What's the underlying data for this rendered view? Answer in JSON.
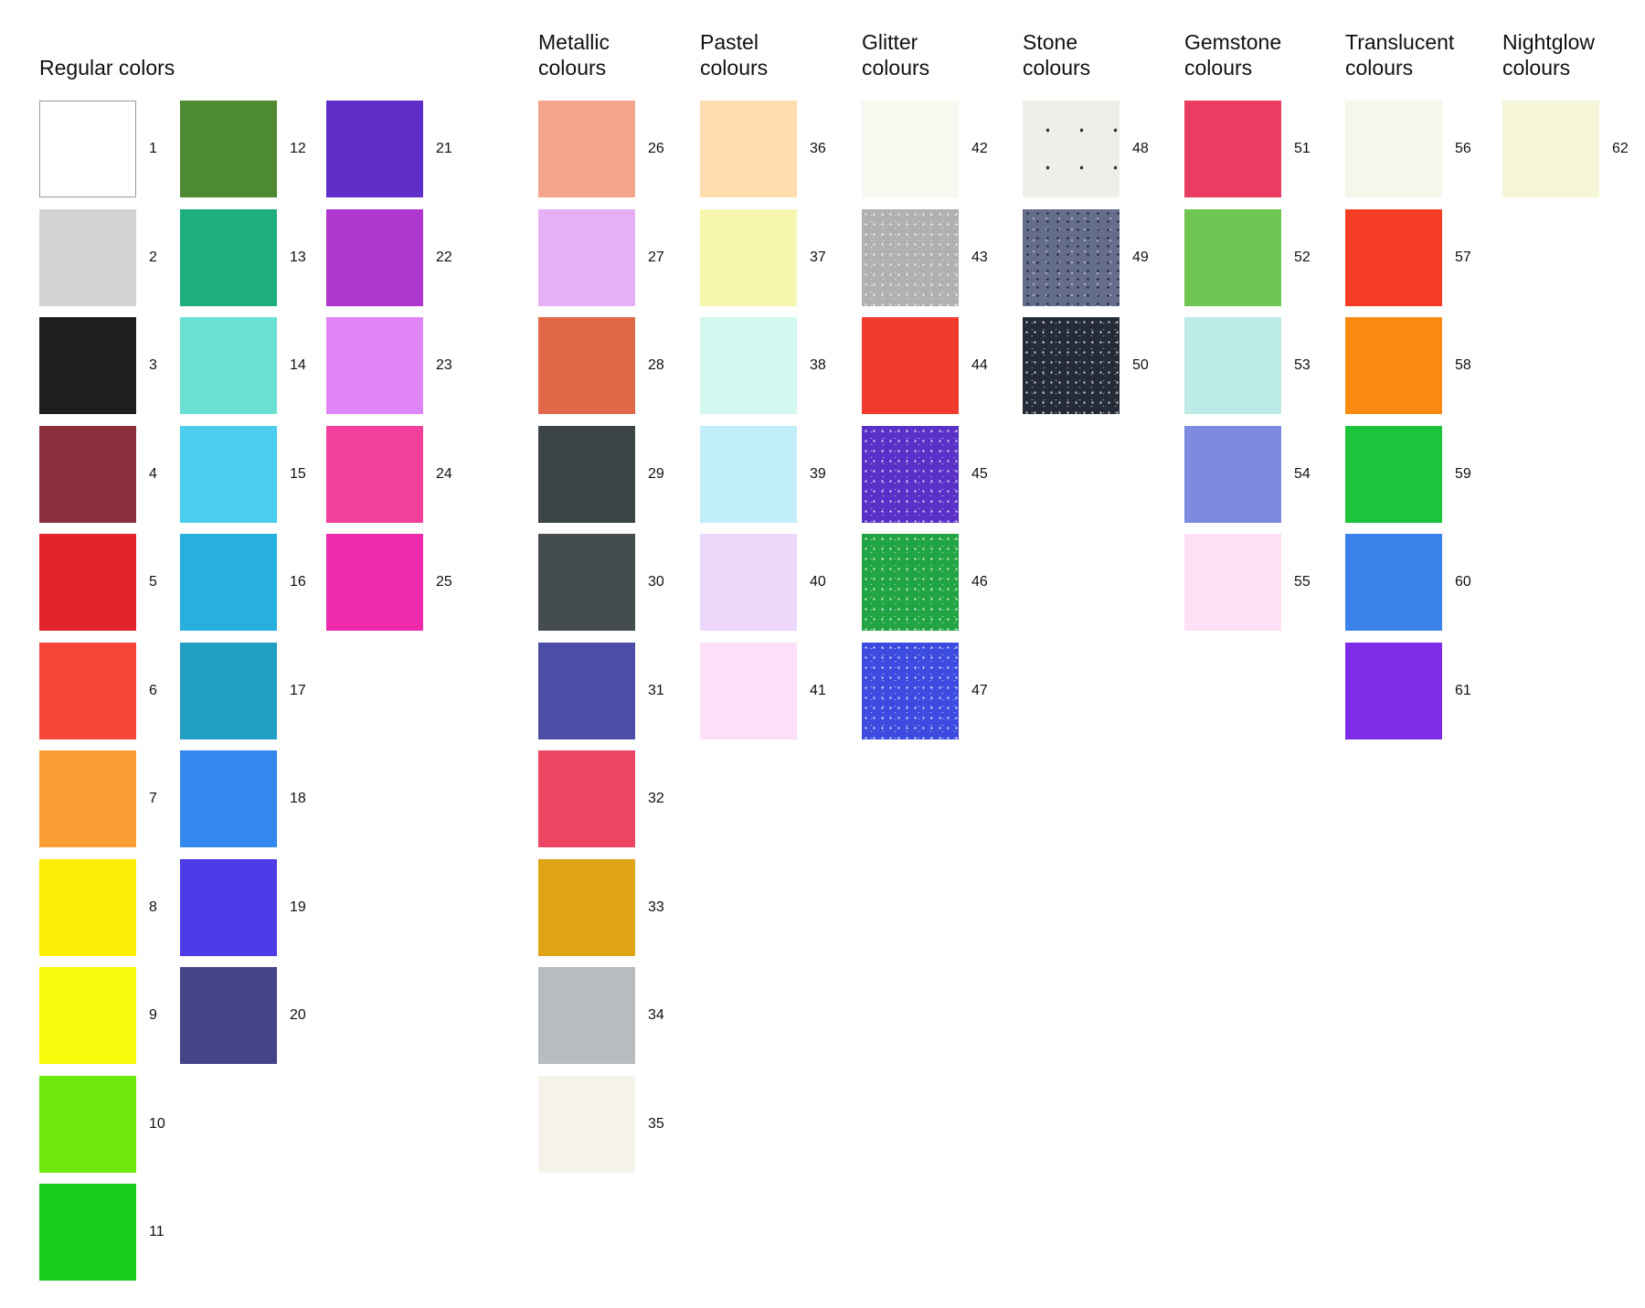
{
  "groups": [
    {
      "title": "Regular colors",
      "columns": [
        [
          {
            "num": "1",
            "color": "#ffffff",
            "border": true
          },
          {
            "num": "2",
            "color": "#d3d3d3"
          },
          {
            "num": "3",
            "color": "#1f1f21"
          },
          {
            "num": "4",
            "color": "#8c2f3c"
          },
          {
            "num": "5",
            "color": "#e2232c"
          },
          {
            "num": "6",
            "color": "#f4473a"
          },
          {
            "num": "7",
            "color": "#f99f34"
          },
          {
            "num": "8",
            "color": "#fdee05"
          },
          {
            "num": "9",
            "color": "#fafa0c"
          },
          {
            "num": "10",
            "color": "#6ee80a"
          },
          {
            "num": "11",
            "color": "#19cc1d"
          }
        ],
        [
          {
            "num": "12",
            "color": "#4e8a32"
          },
          {
            "num": "13",
            "color": "#1fae7f"
          },
          {
            "num": "14",
            "color": "#6ae0d3"
          },
          {
            "num": "15",
            "color": "#4ccdef"
          },
          {
            "num": "16",
            "color": "#27afde"
          },
          {
            "num": "17",
            "color": "#219fc5"
          },
          {
            "num": "18",
            "color": "#3588ee"
          },
          {
            "num": "19",
            "color": "#4e3be8"
          },
          {
            "num": "20",
            "color": "#444489"
          }
        ],
        [
          {
            "num": "21",
            "color": "#5f2ec9"
          },
          {
            "num": "22",
            "color": "#ae36cc"
          },
          {
            "num": "23",
            "color": "#e085f8"
          },
          {
            "num": "24",
            "color": "#f23f9c"
          },
          {
            "num": "25",
            "color": "#ed2aac"
          }
        ]
      ]
    },
    {
      "title": "Metallic\ncolours",
      "columns": [
        [
          {
            "num": "26",
            "color": "#f3a58e"
          },
          {
            "num": "27",
            "color": "#e6b0f7"
          },
          {
            "num": "28",
            "color": "#df6849"
          },
          {
            "num": "29",
            "color": "#3c4448"
          },
          {
            "num": "30",
            "color": "#444c4f"
          },
          {
            "num": "31",
            "color": "#4b4ea4"
          },
          {
            "num": "32",
            "color": "#ee4564"
          },
          {
            "num": "33",
            "color": "#e0a516"
          },
          {
            "num": "34",
            "color": "#b7bcc0"
          },
          {
            "num": "35",
            "color": "#f4f2e9"
          }
        ]
      ]
    },
    {
      "title": "Pastel\ncolours",
      "columns": [
        [
          {
            "num": "36",
            "color": "#fedcae"
          },
          {
            "num": "37",
            "color": "#f7f6ae"
          },
          {
            "num": "38",
            "color": "#d2f8ef"
          },
          {
            "num": "39",
            "color": "#c2eefa"
          },
          {
            "num": "40",
            "color": "#ecd6fa"
          },
          {
            "num": "41",
            "color": "#fde0f8"
          }
        ]
      ]
    },
    {
      "title": "Glitter\ncolours",
      "columns": [
        [
          {
            "num": "42",
            "color": "#f8f8f0"
          },
          {
            "num": "43",
            "color": "#b0b0b0",
            "texture": "glitter"
          },
          {
            "num": "44",
            "color": "#f03b2c"
          },
          {
            "num": "45",
            "color": "#5a31c8",
            "texture": "glitter"
          },
          {
            "num": "46",
            "color": "#21a443",
            "texture": "glitter"
          },
          {
            "num": "47",
            "color": "#3c4be0",
            "texture": "glitter"
          }
        ]
      ]
    },
    {
      "title": "Stone\ncolours",
      "columns": [
        [
          {
            "num": "48",
            "color": "#eeefe8",
            "texture": "sparse"
          },
          {
            "num": "49",
            "color": "#656d8c",
            "texture": "speckle"
          },
          {
            "num": "50",
            "color": "#252c38",
            "texture": "glitter"
          }
        ]
      ]
    },
    {
      "title": "Gemstone\ncolours",
      "columns": [
        [
          {
            "num": "51",
            "color": "#ea3d62"
          },
          {
            "num": "52",
            "color": "#70c652"
          },
          {
            "num": "53",
            "color": "#bdebe6"
          },
          {
            "num": "54",
            "color": "#7d8ae0"
          },
          {
            "num": "55",
            "color": "#fde0f6"
          }
        ]
      ]
    },
    {
      "title": "Translucent\ncolours",
      "columns": [
        [
          {
            "num": "56",
            "color": "#f7f6ea"
          },
          {
            "num": "57",
            "color": "#f63c24"
          },
          {
            "num": "58",
            "color": "#fb8b10"
          },
          {
            "num": "59",
            "color": "#1cc43c"
          },
          {
            "num": "60",
            "color": "#3a82ea"
          },
          {
            "num": "61",
            "color": "#7e2ce8"
          }
        ]
      ]
    },
    {
      "title": "Nightglow\ncolours",
      "columns": [
        [
          {
            "num": "62",
            "color": "#f5f6d8"
          }
        ]
      ]
    }
  ]
}
